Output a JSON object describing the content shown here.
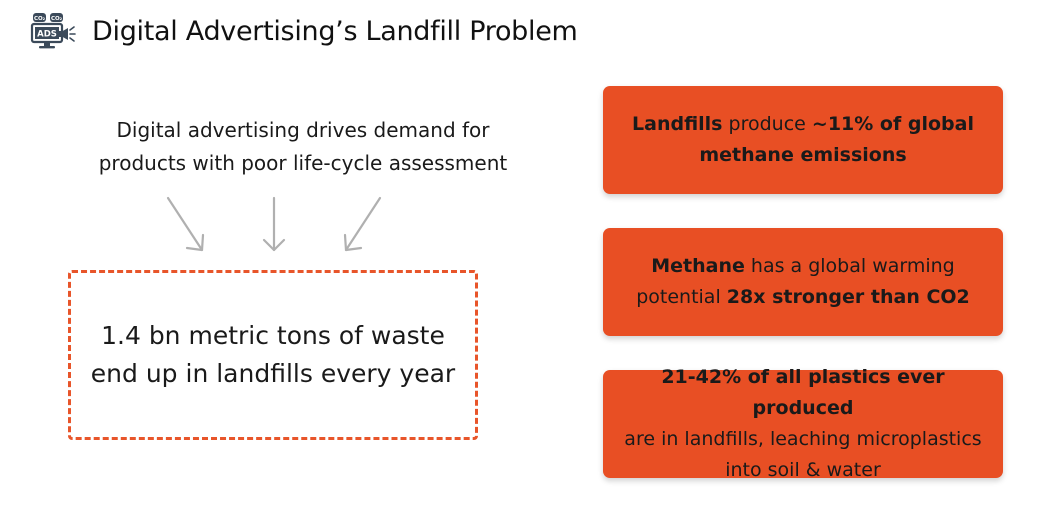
{
  "header": {
    "title": "Digital Advertising’s Landfill Problem",
    "icon": "ads-co2-icon",
    "icon_text": {
      "main": "ADS",
      "badge_left": "CO₂",
      "badge_right": "CO₂"
    }
  },
  "driver_text": {
    "line1": "Digital advertising drives demand for",
    "line2": "products with poor life-cycle assessment"
  },
  "waste_box": {
    "line1": "1.4 bn metric tons of waste",
    "line2": "end up in landfills every year"
  },
  "facts": [
    {
      "a_bold": "Landfills",
      "b": " produce ",
      "c_bold": "~11% of global",
      "d_bold": "methane emissions"
    },
    {
      "a_bold": "Methane",
      "b": " has a global warming",
      "c": "potential ",
      "d_bold": "28x stronger than CO2"
    },
    {
      "a_bold": "21-42% of all plastics ever produced",
      "b": "are in landfills, leaching microplastics",
      "c": "into soil & water"
    }
  ],
  "colors": {
    "accent": "#e84f24",
    "dashed_border": "#e8552a",
    "arrow": "#b0b0b0",
    "text": "#1a1a1a"
  }
}
